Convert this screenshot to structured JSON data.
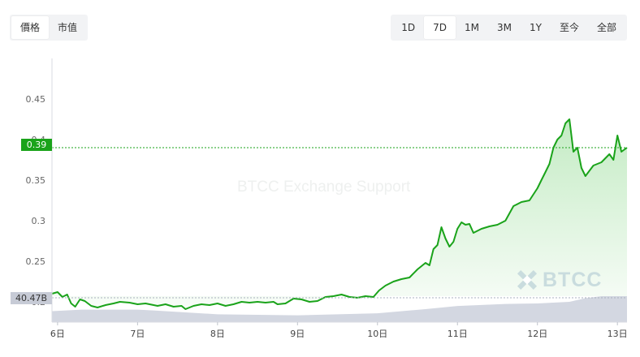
{
  "toggles": {
    "price_label": "價格",
    "marketcap_label": "市值"
  },
  "ranges": [
    "1D",
    "7D",
    "1M",
    "3M",
    "1Y",
    "至今",
    "全部"
  ],
  "active_range": "7D",
  "price_tag": "0.39",
  "volume_tag": "40.47B",
  "watermark": "BTCC Exchange Support",
  "logo_text": "BTCC",
  "colors": {
    "line": "#1aa31a",
    "fill_top": "#bde9bd",
    "volume": "#d3d7e1",
    "accent": "#1aa31a"
  },
  "chart_data": {
    "type": "area",
    "ylim": [
      0.175,
      0.5
    ],
    "y_ticks": [
      "0.45",
      "0.4",
      "0.35",
      "0.3",
      "0.25",
      "0.2"
    ],
    "x_ticks": [
      "6日",
      "7日",
      "8日",
      "9日",
      "10日",
      "11日",
      "12日",
      "13日"
    ],
    "x_tick_values": [
      0,
      1,
      2,
      3,
      4,
      5,
      6,
      7
    ],
    "xlim": [
      -0.07,
      7.12
    ],
    "current_price": 0.39,
    "series": [
      {
        "values": [
          [
            -0.07,
            0.21
          ],
          [
            0.0,
            0.212
          ],
          [
            0.06,
            0.206
          ],
          [
            0.12,
            0.209
          ],
          [
            0.17,
            0.198
          ],
          [
            0.22,
            0.194
          ],
          [
            0.28,
            0.203
          ],
          [
            0.34,
            0.201
          ],
          [
            0.42,
            0.195
          ],
          [
            0.5,
            0.193
          ],
          [
            0.6,
            0.196
          ],
          [
            0.7,
            0.198
          ],
          [
            0.78,
            0.2
          ],
          [
            0.9,
            0.199
          ],
          [
            1.0,
            0.197
          ],
          [
            1.1,
            0.198
          ],
          [
            1.25,
            0.195
          ],
          [
            1.35,
            0.197
          ],
          [
            1.45,
            0.194
          ],
          [
            1.55,
            0.195
          ],
          [
            1.6,
            0.191
          ],
          [
            1.7,
            0.195
          ],
          [
            1.8,
            0.197
          ],
          [
            1.9,
            0.196
          ],
          [
            2.0,
            0.198
          ],
          [
            2.1,
            0.195
          ],
          [
            2.2,
            0.197
          ],
          [
            2.3,
            0.2
          ],
          [
            2.4,
            0.199
          ],
          [
            2.5,
            0.2
          ],
          [
            2.6,
            0.199
          ],
          [
            2.7,
            0.2
          ],
          [
            2.75,
            0.197
          ],
          [
            2.85,
            0.198
          ],
          [
            2.95,
            0.204
          ],
          [
            3.05,
            0.203
          ],
          [
            3.15,
            0.2
          ],
          [
            3.25,
            0.201
          ],
          [
            3.35,
            0.206
          ],
          [
            3.45,
            0.207
          ],
          [
            3.55,
            0.209
          ],
          [
            3.65,
            0.206
          ],
          [
            3.75,
            0.205
          ],
          [
            3.85,
            0.207
          ],
          [
            3.95,
            0.206
          ],
          [
            4.02,
            0.214
          ],
          [
            4.1,
            0.22
          ],
          [
            4.2,
            0.225
          ],
          [
            4.3,
            0.228
          ],
          [
            4.4,
            0.23
          ],
          [
            4.5,
            0.24
          ],
          [
            4.6,
            0.248
          ],
          [
            4.65,
            0.245
          ],
          [
            4.7,
            0.265
          ],
          [
            4.75,
            0.27
          ],
          [
            4.8,
            0.292
          ],
          [
            4.85,
            0.278
          ],
          [
            4.9,
            0.268
          ],
          [
            4.95,
            0.274
          ],
          [
            5.0,
            0.29
          ],
          [
            5.05,
            0.298
          ],
          [
            5.1,
            0.295
          ],
          [
            5.15,
            0.296
          ],
          [
            5.2,
            0.285
          ],
          [
            5.3,
            0.29
          ],
          [
            5.4,
            0.293
          ],
          [
            5.5,
            0.295
          ],
          [
            5.6,
            0.3
          ],
          [
            5.7,
            0.318
          ],
          [
            5.8,
            0.323
          ],
          [
            5.9,
            0.325
          ],
          [
            6.0,
            0.34
          ],
          [
            6.05,
            0.35
          ],
          [
            6.1,
            0.36
          ],
          [
            6.15,
            0.37
          ],
          [
            6.2,
            0.39
          ],
          [
            6.25,
            0.4
          ],
          [
            6.3,
            0.405
          ],
          [
            6.35,
            0.42
          ],
          [
            6.4,
            0.425
          ],
          [
            6.45,
            0.385
          ],
          [
            6.5,
            0.39
          ],
          [
            6.55,
            0.365
          ],
          [
            6.6,
            0.355
          ],
          [
            6.7,
            0.368
          ],
          [
            6.8,
            0.372
          ],
          [
            6.9,
            0.382
          ],
          [
            6.95,
            0.375
          ],
          [
            7.0,
            0.405
          ],
          [
            7.05,
            0.385
          ],
          [
            7.12,
            0.39
          ]
        ]
      }
    ],
    "volume": [
      [
        -0.07,
        0.42
      ],
      [
        0.3,
        0.48
      ],
      [
        1.0,
        0.48
      ],
      [
        1.2,
        0.45
      ],
      [
        2.0,
        0.3
      ],
      [
        3.0,
        0.26
      ],
      [
        4.0,
        0.34
      ],
      [
        4.6,
        0.5
      ],
      [
        5.0,
        0.62
      ],
      [
        5.6,
        0.7
      ],
      [
        6.0,
        0.72
      ],
      [
        6.4,
        0.78
      ],
      [
        6.6,
        0.92
      ],
      [
        6.8,
        1.0
      ],
      [
        7.12,
        1.0
      ]
    ]
  }
}
